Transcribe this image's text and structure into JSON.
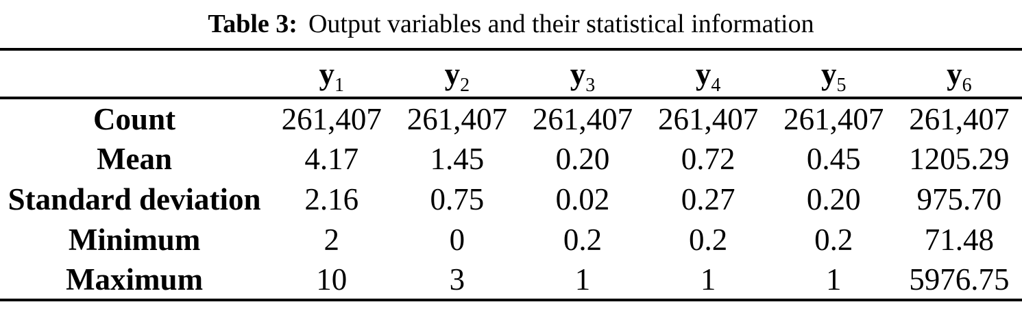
{
  "caption": {
    "label": "Table 3:",
    "text": "Output variables and their statistical information"
  },
  "table": {
    "corner_cell": "",
    "columns": [
      {
        "base": "y",
        "sub": "1"
      },
      {
        "base": "y",
        "sub": "2"
      },
      {
        "base": "y",
        "sub": "3"
      },
      {
        "base": "y",
        "sub": "4"
      },
      {
        "base": "y",
        "sub": "5"
      },
      {
        "base": "y",
        "sub": "6"
      }
    ],
    "rows": [
      {
        "label": "Count",
        "values": [
          "261,407",
          "261,407",
          "261,407",
          "261,407",
          "261,407",
          "261,407"
        ]
      },
      {
        "label": "Mean",
        "values": [
          "4.17",
          "1.45",
          "0.20",
          "0.72",
          "0.45",
          "1205.29"
        ]
      },
      {
        "label": "Standard deviation",
        "values": [
          "2.16",
          "0.75",
          "0.02",
          "0.27",
          "0.20",
          "975.70"
        ]
      },
      {
        "label": "Minimum",
        "values": [
          "2",
          "0",
          "0.2",
          "0.2",
          "0.2",
          "71.48"
        ]
      },
      {
        "label": "Maximum",
        "values": [
          "10",
          "3",
          "1",
          "1",
          "1",
          "5976.75"
        ]
      }
    ]
  },
  "colors": {
    "text": "#000000",
    "background": "#ffffff",
    "rule": "#000000"
  }
}
